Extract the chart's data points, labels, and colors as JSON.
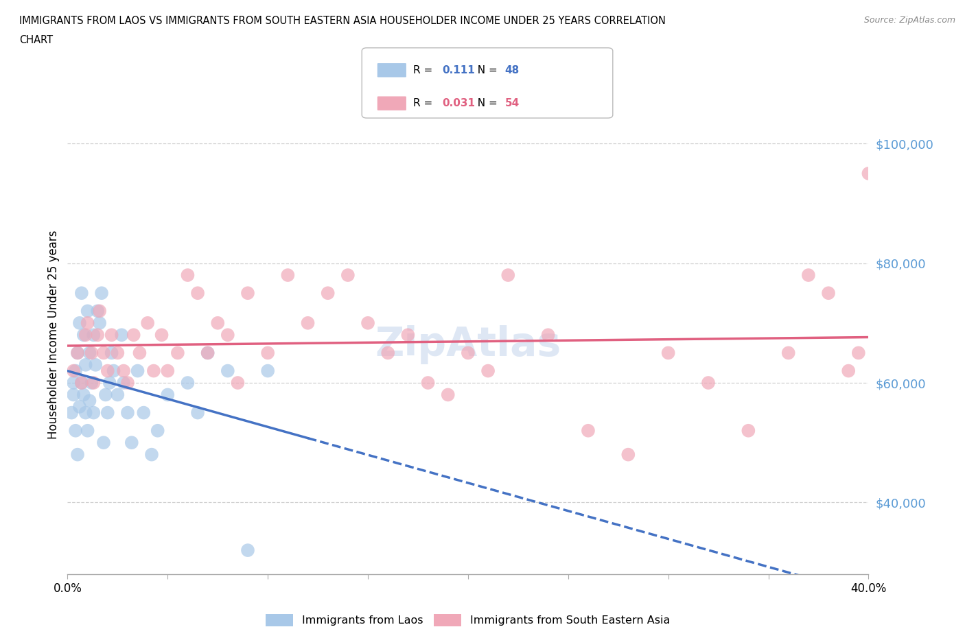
{
  "title_line1": "IMMIGRANTS FROM LAOS VS IMMIGRANTS FROM SOUTH EASTERN ASIA HOUSEHOLDER INCOME UNDER 25 YEARS CORRELATION",
  "title_line2": "CHART",
  "source": "Source: ZipAtlas.com",
  "ylabel": "Householder Income Under 25 years",
  "xlim": [
    0.0,
    0.4
  ],
  "ylim": [
    28000,
    108000
  ],
  "yticks": [
    40000,
    60000,
    80000,
    100000
  ],
  "ytick_labels": [
    "$40,000",
    "$60,000",
    "$80,000",
    "$100,000"
  ],
  "xticks": [
    0.0,
    0.05,
    0.1,
    0.15,
    0.2,
    0.25,
    0.3,
    0.35,
    0.4
  ],
  "xtick_labels": [
    "0.0%",
    "",
    "",
    "",
    "",
    "",
    "",
    "",
    "40.0%"
  ],
  "blue_color": "#a8c8e8",
  "pink_color": "#f0a8b8",
  "blue_line_color": "#4472c4",
  "pink_line_color": "#e06080",
  "legend_R1": "0.111",
  "legend_N1": "48",
  "legend_R2": "0.031",
  "legend_N2": "54",
  "label1": "Immigrants from Laos",
  "label2": "Immigrants from South Eastern Asia",
  "background_color": "#ffffff",
  "grid_color": "#d0d0d0",
  "blue_x": [
    0.002,
    0.003,
    0.003,
    0.004,
    0.004,
    0.005,
    0.005,
    0.006,
    0.006,
    0.007,
    0.007,
    0.008,
    0.008,
    0.009,
    0.009,
    0.01,
    0.01,
    0.011,
    0.011,
    0.012,
    0.013,
    0.013,
    0.014,
    0.015,
    0.016,
    0.017,
    0.018,
    0.019,
    0.02,
    0.021,
    0.022,
    0.023,
    0.025,
    0.027,
    0.028,
    0.03,
    0.032,
    0.035,
    0.038,
    0.042,
    0.045,
    0.05,
    0.06,
    0.065,
    0.07,
    0.08,
    0.09,
    0.1
  ],
  "blue_y": [
    55000,
    58000,
    60000,
    52000,
    62000,
    48000,
    65000,
    56000,
    70000,
    60000,
    75000,
    58000,
    68000,
    55000,
    63000,
    52000,
    72000,
    57000,
    65000,
    60000,
    68000,
    55000,
    63000,
    72000,
    70000,
    75000,
    50000,
    58000,
    55000,
    60000,
    65000,
    62000,
    58000,
    68000,
    60000,
    55000,
    50000,
    62000,
    55000,
    48000,
    52000,
    58000,
    60000,
    55000,
    65000,
    62000,
    32000,
    62000
  ],
  "pink_x": [
    0.003,
    0.005,
    0.007,
    0.009,
    0.01,
    0.012,
    0.013,
    0.015,
    0.016,
    0.018,
    0.02,
    0.022,
    0.025,
    0.028,
    0.03,
    0.033,
    0.036,
    0.04,
    0.043,
    0.047,
    0.05,
    0.055,
    0.06,
    0.065,
    0.07,
    0.075,
    0.08,
    0.085,
    0.09,
    0.1,
    0.11,
    0.12,
    0.13,
    0.14,
    0.15,
    0.16,
    0.17,
    0.18,
    0.19,
    0.2,
    0.21,
    0.22,
    0.24,
    0.26,
    0.28,
    0.3,
    0.32,
    0.34,
    0.36,
    0.37,
    0.38,
    0.39,
    0.395,
    0.4
  ],
  "pink_y": [
    62000,
    65000,
    60000,
    68000,
    70000,
    65000,
    60000,
    68000,
    72000,
    65000,
    62000,
    68000,
    65000,
    62000,
    60000,
    68000,
    65000,
    70000,
    62000,
    68000,
    62000,
    65000,
    78000,
    75000,
    65000,
    70000,
    68000,
    60000,
    75000,
    65000,
    78000,
    70000,
    75000,
    78000,
    70000,
    65000,
    68000,
    60000,
    58000,
    65000,
    62000,
    78000,
    68000,
    52000,
    48000,
    65000,
    60000,
    52000,
    65000,
    78000,
    75000,
    62000,
    65000,
    95000
  ]
}
